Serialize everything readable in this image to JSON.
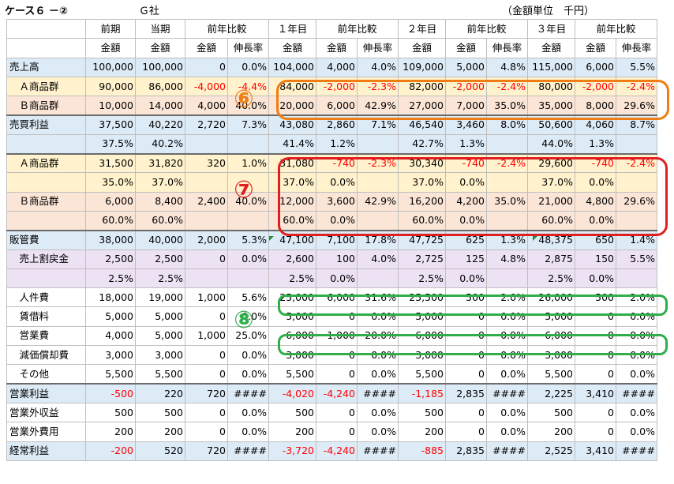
{
  "header": {
    "title": "ケース６ －②",
    "company": "Ｇ社",
    "unit": "（金額単位　千円）"
  },
  "columns": {
    "groups": [
      "",
      "前期",
      "当期",
      "前年比較",
      "",
      "１年目",
      "前年比較",
      "",
      "２年目",
      "前年比較",
      "",
      "３年目",
      "前年比較",
      ""
    ],
    "subs": [
      "",
      "金額",
      "金額",
      "金額",
      "伸長率",
      "金額",
      "金額",
      "伸長率",
      "金額",
      "金額",
      "伸長率",
      "金額",
      "金額",
      "伸長率"
    ]
  },
  "rows": [
    {
      "label": "売上高",
      "bg": "blue",
      "cells": [
        "100,000",
        "100,000",
        "0",
        "0.0%",
        "104,000",
        "4,000",
        "4.0%",
        "109,000",
        "5,000",
        "4.8%",
        "115,000",
        "6,000",
        "5.5%"
      ]
    },
    {
      "label": "Ａ商品群",
      "indent": true,
      "bg": "yellow",
      "cells": [
        "90,000",
        "86,000",
        "-4,000",
        "-4.4%",
        "84,000",
        "-2,000",
        "-2.3%",
        "82,000",
        "-2,000",
        "-2.4%",
        "80,000",
        "-2,000",
        "-2.4%"
      ]
    },
    {
      "label": "Ｂ商品群",
      "indent": true,
      "bg": "salmon",
      "cells": [
        "10,000",
        "14,000",
        "4,000",
        "40.0%",
        "20,000",
        "6,000",
        "42.9%",
        "27,000",
        "7,000",
        "35.0%",
        "35,000",
        "8,000",
        "29.6%"
      ]
    },
    {
      "label": "売買利益",
      "bg": "blue",
      "thick": true,
      "cells": [
        "37,500",
        "40,220",
        "2,720",
        "7.3%",
        "43,080",
        "2,860",
        "7.1%",
        "46,540",
        "3,460",
        "8.0%",
        "50,600",
        "4,060",
        "8.7%"
      ]
    },
    {
      "label": "",
      "bg": "blue",
      "cells": [
        "37.5%",
        "40.2%",
        "",
        "",
        "41.4%",
        "1.2%",
        "",
        "42.7%",
        "1.3%",
        "",
        "44.0%",
        "1.3%",
        ""
      ]
    },
    {
      "label": "Ａ商品群",
      "indent": true,
      "bg": "yellow",
      "thick": true,
      "cells": [
        "31,500",
        "31,820",
        "320",
        "1.0%",
        "31,080",
        "-740",
        "-2.3%",
        "30,340",
        "-740",
        "-2.4%",
        "29,600",
        "-740",
        "-2.4%"
      ]
    },
    {
      "label": "",
      "bg": "yellow",
      "cells": [
        "35.0%",
        "37.0%",
        "",
        "",
        "37.0%",
        "0.0%",
        "",
        "37.0%",
        "0.0%",
        "",
        "37.0%",
        "0.0%",
        ""
      ]
    },
    {
      "label": "Ｂ商品群",
      "indent": true,
      "bg": "salmon",
      "cells": [
        "6,000",
        "8,400",
        "2,400",
        "40.0%",
        "12,000",
        "3,600",
        "42.9%",
        "16,200",
        "4,200",
        "35.0%",
        "21,000",
        "4,800",
        "29.6%"
      ]
    },
    {
      "label": "",
      "bg": "salmon",
      "cells": [
        "60.0%",
        "60.0%",
        "",
        "",
        "60.0%",
        "0.0%",
        "",
        "60.0%",
        "0.0%",
        "",
        "60.0%",
        "0.0%",
        ""
      ]
    },
    {
      "label": "販管費",
      "bg": "blue",
      "thick": true,
      "cells": [
        "38,000",
        "40,000",
        "2,000",
        "5.3%",
        "47,100",
        "7,100",
        "17.8%",
        "47,725",
        "625",
        "1.3%",
        "48,375",
        "650",
        "1.4%"
      ]
    },
    {
      "label": "売上割戻金",
      "indent": true,
      "bg": "purple",
      "cells": [
        "2,500",
        "2,500",
        "0",
        "0.0%",
        "2,600",
        "100",
        "4.0%",
        "2,725",
        "125",
        "4.8%",
        "2,875",
        "150",
        "5.5%"
      ]
    },
    {
      "label": "",
      "bg": "purple",
      "cells": [
        "2.5%",
        "2.5%",
        "",
        "",
        "2.5%",
        "0.0%",
        "",
        "2.5%",
        "0.0%",
        "",
        "2.5%",
        "0.0%",
        ""
      ]
    },
    {
      "label": "人件費",
      "indent": true,
      "bg": "white",
      "cells": [
        "18,000",
        "19,000",
        "1,000",
        "5.6%",
        "25,000",
        "6,000",
        "31.6%",
        "25,500",
        "500",
        "2.0%",
        "26,000",
        "500",
        "2.0%"
      ]
    },
    {
      "label": "賃借料",
      "indent": true,
      "bg": "white",
      "cells": [
        "5,000",
        "5,000",
        "0",
        "0.0%",
        "5,000",
        "0",
        "0.0%",
        "5,000",
        "0",
        "0.0%",
        "5,000",
        "0",
        "0.0%"
      ]
    },
    {
      "label": "営業費",
      "indent": true,
      "bg": "white",
      "cells": [
        "4,000",
        "5,000",
        "1,000",
        "25.0%",
        "6,000",
        "1,000",
        "20.0%",
        "6,000",
        "0",
        "0.0%",
        "6,000",
        "0",
        "0.0%"
      ]
    },
    {
      "label": "減価償却費",
      "indent": true,
      "bg": "white",
      "cells": [
        "3,000",
        "3,000",
        "0",
        "0.0%",
        "3,000",
        "0",
        "0.0%",
        "3,000",
        "0",
        "0.0%",
        "3,000",
        "0",
        "0.0%"
      ]
    },
    {
      "label": "その他",
      "indent": true,
      "bg": "white",
      "cells": [
        "5,500",
        "5,500",
        "0",
        "0.0%",
        "5,500",
        "0",
        "0.0%",
        "5,500",
        "0",
        "0.0%",
        "5,500",
        "0",
        "0.0%"
      ]
    },
    {
      "label": "営業利益",
      "bg": "blue",
      "thick": true,
      "cells": [
        "-500",
        "220",
        "720",
        "####",
        "-4,020",
        "-4,240",
        "####",
        "-1,185",
        "2,835",
        "####",
        "2,225",
        "3,410",
        "####"
      ]
    },
    {
      "label": "営業外収益",
      "bg": "white",
      "cells": [
        "500",
        "500",
        "0",
        "0.0%",
        "500",
        "0",
        "0.0%",
        "500",
        "0",
        "0.0%",
        "500",
        "0",
        "0.0%"
      ]
    },
    {
      "label": "営業外費用",
      "bg": "white",
      "cells": [
        "200",
        "200",
        "0",
        "0.0%",
        "200",
        "0",
        "0.0%",
        "200",
        "0",
        "0.0%",
        "200",
        "0",
        "0.0%"
      ]
    },
    {
      "label": "経常利益",
      "bg": "blue",
      "cells": [
        "-200",
        "520",
        "720",
        "####",
        "-3,720",
        "-4,240",
        "####",
        "-885",
        "2,835",
        "####",
        "2,525",
        "3,410",
        "####"
      ]
    }
  ],
  "markers": [
    {
      "id": "6",
      "glyph": "⑥",
      "color": "#f07d13"
    },
    {
      "id": "7",
      "glyph": "⑦",
      "color": "#e02020"
    },
    {
      "id": "8",
      "glyph": "⑧",
      "color": "#2fae4a"
    }
  ]
}
